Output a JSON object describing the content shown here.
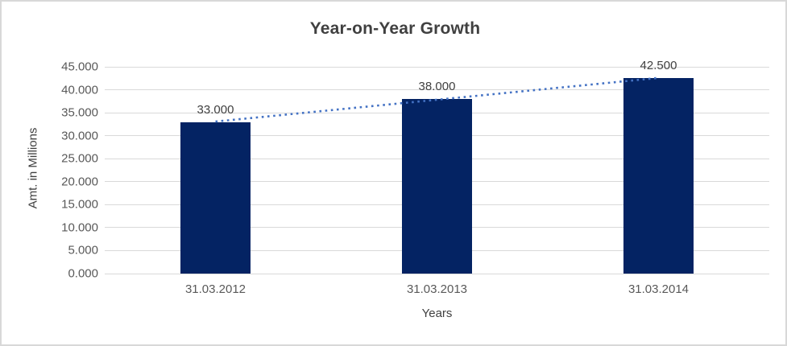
{
  "chart_data": {
    "type": "bar",
    "title": "Year-on-Year Growth",
    "categories": [
      "31.03.2012",
      "31.03.2013",
      "31.03.2014"
    ],
    "values": [
      33.0,
      38.0,
      42.5
    ],
    "data_labels": [
      "33.000",
      "38.000",
      "42.500"
    ],
    "xlabel": "Years",
    "ylabel": "Amt. in Millions",
    "ylim": [
      0,
      45
    ],
    "ytick_step": 5,
    "ytick_labels": [
      "0.000",
      "5.000",
      "10.000",
      "15.000",
      "20.000",
      "25.000",
      "30.000",
      "35.000",
      "40.000",
      "45.000"
    ],
    "grid": true,
    "legend": false,
    "trendline": {
      "type": "linear",
      "style": "dotted"
    },
    "colors": {
      "bar": "#042363",
      "trendline": "#4472C4",
      "gridline": "#D9D9D9",
      "title_text": "#404040",
      "tick_text": "#595959",
      "axis_title_text": "#404040",
      "chart_border": "#D8D8D8",
      "background": "#FFFFFF"
    }
  }
}
